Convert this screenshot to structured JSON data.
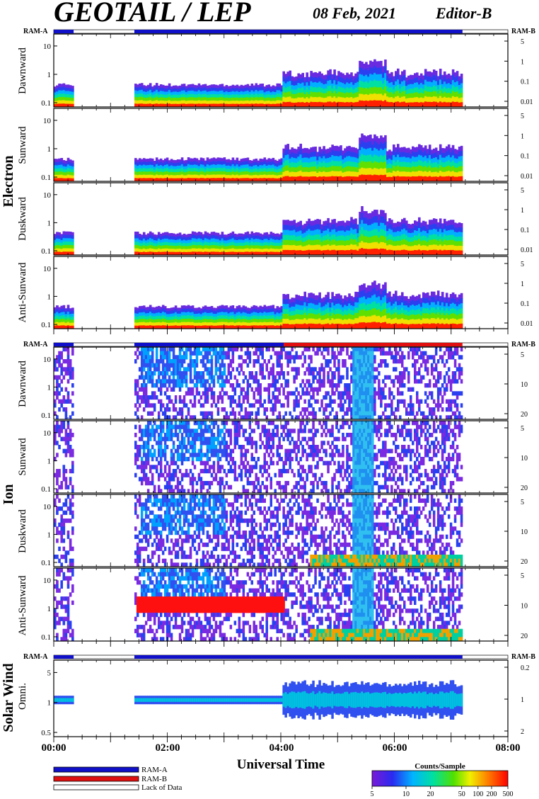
{
  "title": "GEOTAIL / LEP",
  "date": "08 Feb, 2021",
  "editor": "Editor-B",
  "ram_a": "RAM-A",
  "ram_b": "RAM-B",
  "groups": {
    "electron": "Electron",
    "ion": "Ion",
    "solar_wind": "Solar Wind"
  },
  "panels": {
    "e_dawn": "Dawnward",
    "e_sun": "Sunward",
    "e_dusk": "Duskward",
    "e_anti": "Anti-Sunward",
    "i_dawn": "Dawnward",
    "i_sun": "Sunward",
    "i_dusk": "Duskward",
    "i_anti": "Anti-Sunward",
    "sw_omni": "Omni."
  },
  "xaxis_title": "Universal Time",
  "legend": {
    "ram_a": "RAM-A",
    "ram_b": "RAM-B",
    "lack": "Lack of Data",
    "ram_a_color": "#1010c8",
    "ram_b_color": "#e01010"
  },
  "colorbar": {
    "title": "Counts/Sample",
    "ticks": [
      "5",
      "10",
      "20",
      "50",
      "100",
      "200",
      "500"
    ]
  },
  "chart_data": {
    "type": "heatmap",
    "x_ticks": [
      "00:00",
      "02:00",
      "04:00",
      "06:00",
      "08:00"
    ],
    "x_range_hours": [
      0,
      8
    ],
    "data_coverage_hours": [
      [
        0.0,
        0.35
      ],
      [
        1.42,
        7.2
      ]
    ],
    "electron_left_ticks": [
      "0.1",
      "1",
      "10"
    ],
    "electron_right_ticks": [
      "5",
      "1",
      "0.1",
      "0.01"
    ],
    "ion_left_ticks": [
      "0.1",
      "1",
      "10"
    ],
    "ion_right_ticks": [
      "5",
      "10",
      "20"
    ],
    "sw_left_ticks": [
      "0.5",
      "1",
      "5"
    ],
    "sw_right_ticks": [
      "0.2",
      "1",
      "2"
    ],
    "mode_bars": {
      "electron": [
        {
          "start": 0.0,
          "end": 0.35,
          "mode": "A"
        },
        {
          "start": 1.42,
          "end": 7.2,
          "mode": "A"
        }
      ],
      "ion": [
        {
          "start": 0.0,
          "end": 0.35,
          "mode": "A"
        },
        {
          "start": 1.42,
          "end": 4.05,
          "mode": "A"
        },
        {
          "start": 4.05,
          "end": 7.2,
          "mode": "B"
        }
      ],
      "sw": [
        {
          "start": 0.0,
          "end": 0.35,
          "mode": "A"
        },
        {
          "start": 1.42,
          "end": 7.2,
          "mode": "A"
        }
      ]
    }
  }
}
